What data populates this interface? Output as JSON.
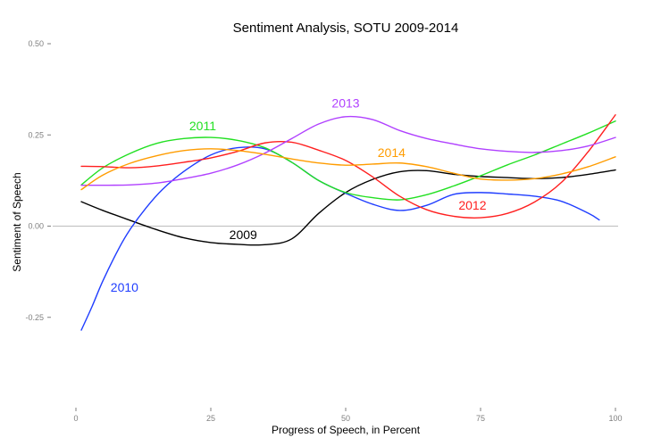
{
  "chart_data": {
    "type": "line",
    "title": "Sentiment Analysis, SOTU 2009-2014",
    "xlabel": "Progress of Speech, in Percent",
    "ylabel": "Sentiment of Speech",
    "xlim": [
      0,
      100
    ],
    "ylim": [
      -0.5,
      0.5
    ],
    "xticks": [
      0,
      25,
      50,
      75,
      100
    ],
    "xtick_labels": [
      "0",
      "25",
      "50",
      "75",
      "100"
    ],
    "yticks": [
      0.5,
      0.25,
      0.0,
      -0.25
    ],
    "ytick_labels": [
      "0.50",
      "0.25",
      "0.00",
      "-0.25"
    ],
    "reference_line": {
      "y": 0
    },
    "grid": false,
    "series": [
      {
        "name": "2009",
        "color": "#000000",
        "label_at": [
          31,
          -0.035
        ],
        "points": [
          [
            1,
            0.067
          ],
          [
            5,
            0.043
          ],
          [
            10,
            0.016
          ],
          [
            15,
            -0.01
          ],
          [
            20,
            -0.032
          ],
          [
            25,
            -0.045
          ],
          [
            30,
            -0.05
          ],
          [
            35,
            -0.051
          ],
          [
            40,
            -0.035
          ],
          [
            45,
            0.035
          ],
          [
            50,
            0.092
          ],
          [
            55,
            0.128
          ],
          [
            60,
            0.149
          ],
          [
            65,
            0.152
          ],
          [
            70,
            0.142
          ],
          [
            75,
            0.136
          ],
          [
            80,
            0.133
          ],
          [
            85,
            0.13
          ],
          [
            90,
            0.133
          ],
          [
            95,
            0.142
          ],
          [
            100,
            0.154
          ]
        ]
      },
      {
        "name": "2010",
        "color": "#1f3dff",
        "label_at": [
          9,
          -0.18
        ],
        "points": [
          [
            1,
            -0.285
          ],
          [
            3,
            -0.22
          ],
          [
            5,
            -0.15
          ],
          [
            8,
            -0.06
          ],
          [
            10,
            -0.01
          ],
          [
            13,
            0.05
          ],
          [
            16,
            0.1
          ],
          [
            20,
            0.15
          ],
          [
            25,
            0.195
          ],
          [
            30,
            0.215
          ],
          [
            35,
            0.212
          ],
          [
            40,
            0.175
          ],
          [
            45,
            0.125
          ],
          [
            50,
            0.09
          ],
          [
            55,
            0.06
          ],
          [
            60,
            0.043
          ],
          [
            65,
            0.057
          ],
          [
            70,
            0.087
          ],
          [
            75,
            0.092
          ],
          [
            80,
            0.088
          ],
          [
            85,
            0.082
          ],
          [
            90,
            0.068
          ],
          [
            95,
            0.035
          ],
          [
            97,
            0.017
          ]
        ]
      },
      {
        "name": "2011",
        "color": "#22e022",
        "label_at": [
          23.5,
          0.263
        ],
        "points": [
          [
            1,
            0.113
          ],
          [
            5,
            0.16
          ],
          [
            10,
            0.199
          ],
          [
            15,
            0.227
          ],
          [
            20,
            0.24
          ],
          [
            25,
            0.243
          ],
          [
            30,
            0.235
          ],
          [
            35,
            0.215
          ],
          [
            40,
            0.175
          ],
          [
            45,
            0.125
          ],
          [
            50,
            0.092
          ],
          [
            55,
            0.078
          ],
          [
            60,
            0.072
          ],
          [
            65,
            0.086
          ],
          [
            70,
            0.11
          ],
          [
            75,
            0.138
          ],
          [
            80,
            0.168
          ],
          [
            85,
            0.195
          ],
          [
            90,
            0.225
          ],
          [
            95,
            0.255
          ],
          [
            100,
            0.288
          ]
        ]
      },
      {
        "name": "2012",
        "color": "#ff1f1f",
        "label_at": [
          73.5,
          0.045
        ],
        "points": [
          [
            1,
            0.164
          ],
          [
            5,
            0.163
          ],
          [
            10,
            0.16
          ],
          [
            15,
            0.165
          ],
          [
            20,
            0.175
          ],
          [
            25,
            0.187
          ],
          [
            30,
            0.205
          ],
          [
            35,
            0.228
          ],
          [
            40,
            0.23
          ],
          [
            45,
            0.208
          ],
          [
            50,
            0.18
          ],
          [
            55,
            0.135
          ],
          [
            60,
            0.082
          ],
          [
            65,
            0.045
          ],
          [
            70,
            0.027
          ],
          [
            75,
            0.023
          ],
          [
            80,
            0.035
          ],
          [
            85,
            0.066
          ],
          [
            90,
            0.12
          ],
          [
            95,
            0.205
          ],
          [
            100,
            0.305
          ]
        ]
      },
      {
        "name": "2013",
        "color": "#b040ff",
        "label_at": [
          50,
          0.325
        ],
        "points": [
          [
            1,
            0.112
          ],
          [
            5,
            0.112
          ],
          [
            10,
            0.113
          ],
          [
            15,
            0.118
          ],
          [
            20,
            0.13
          ],
          [
            25,
            0.145
          ],
          [
            30,
            0.168
          ],
          [
            35,
            0.2
          ],
          [
            40,
            0.24
          ],
          [
            45,
            0.28
          ],
          [
            50,
            0.3
          ],
          [
            55,
            0.292
          ],
          [
            60,
            0.262
          ],
          [
            65,
            0.24
          ],
          [
            70,
            0.225
          ],
          [
            75,
            0.212
          ],
          [
            80,
            0.205
          ],
          [
            85,
            0.202
          ],
          [
            90,
            0.207
          ],
          [
            95,
            0.22
          ],
          [
            100,
            0.243
          ]
        ]
      },
      {
        "name": "2014",
        "color": "#ff9c00",
        "label_at": [
          58.5,
          0.19
        ],
        "points": [
          [
            1,
            0.1
          ],
          [
            5,
            0.14
          ],
          [
            10,
            0.172
          ],
          [
            15,
            0.193
          ],
          [
            20,
            0.207
          ],
          [
            25,
            0.212
          ],
          [
            30,
            0.207
          ],
          [
            35,
            0.197
          ],
          [
            40,
            0.184
          ],
          [
            45,
            0.173
          ],
          [
            50,
            0.167
          ],
          [
            55,
            0.17
          ],
          [
            60,
            0.173
          ],
          [
            65,
            0.163
          ],
          [
            70,
            0.145
          ],
          [
            75,
            0.129
          ],
          [
            80,
            0.126
          ],
          [
            85,
            0.13
          ],
          [
            90,
            0.143
          ],
          [
            95,
            0.163
          ],
          [
            100,
            0.19
          ]
        ]
      }
    ]
  }
}
